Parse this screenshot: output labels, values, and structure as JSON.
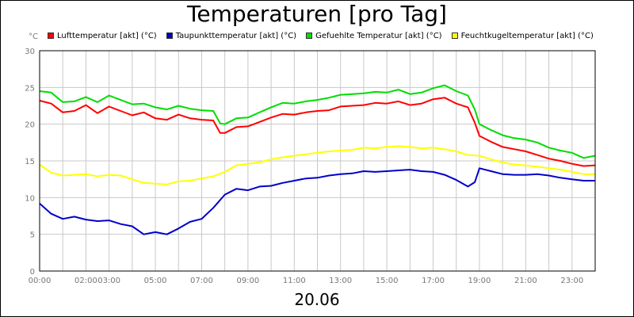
{
  "chart_data": {
    "type": "line",
    "title": "Temperaturen [pro Tag]",
    "y_unit_label": "°C",
    "xlabel": "20.06",
    "ylim": [
      0,
      30
    ],
    "y_ticks": [
      "0",
      "5",
      "10",
      "15",
      "20",
      "25",
      "30"
    ],
    "x_range_hours": [
      0,
      24
    ],
    "x_tick_labels": [
      {
        "h": 0,
        "label": "00:00"
      },
      {
        "h": 2,
        "label": "02:00"
      },
      {
        "h": 3,
        "label": "03:00"
      },
      {
        "h": 5,
        "label": "05:00"
      },
      {
        "h": 7,
        "label": "07:00"
      },
      {
        "h": 9,
        "label": "09:00"
      },
      {
        "h": 11,
        "label": "11:00"
      },
      {
        "h": 13,
        "label": "13:00"
      },
      {
        "h": 15,
        "label": "15:00"
      },
      {
        "h": 17,
        "label": "17:00"
      },
      {
        "h": 19,
        "label": "19:00"
      },
      {
        "h": 21,
        "label": "21:00"
      },
      {
        "h": 23,
        "label": "23:00"
      }
    ],
    "grid": true,
    "legend_position": "top",
    "series": [
      {
        "name": "Lufttemperatur [akt] (°C)",
        "color": "#ff0000",
        "x": [
          0,
          0.5,
          1,
          1.5,
          2,
          2.5,
          3,
          3.5,
          4,
          4.5,
          5,
          5.5,
          6,
          6.5,
          7,
          7.5,
          7.8,
          8,
          8.5,
          9,
          9.5,
          10,
          10.5,
          11,
          11.5,
          12,
          12.5,
          13,
          13.5,
          14,
          14.5,
          15,
          15.5,
          16,
          16.5,
          17,
          17.5,
          18,
          18.5,
          18.8,
          19,
          19.5,
          20,
          20.5,
          21,
          21.5,
          22,
          22.5,
          23,
          23.5,
          24
        ],
        "y": [
          23.2,
          22.8,
          21.6,
          21.8,
          22.6,
          21.5,
          22.4,
          21.8,
          21.2,
          21.6,
          20.8,
          20.6,
          21.3,
          20.8,
          20.6,
          20.5,
          18.8,
          18.8,
          19.6,
          19.7,
          20.3,
          20.9,
          21.4,
          21.3,
          21.6,
          21.8,
          21.9,
          22.4,
          22.5,
          22.6,
          22.9,
          22.8,
          23.1,
          22.6,
          22.8,
          23.4,
          23.6,
          22.8,
          22.3,
          20.2,
          18.4,
          17.6,
          16.9,
          16.6,
          16.3,
          15.8,
          15.3,
          15.0,
          14.6,
          14.3,
          14.4
        ]
      },
      {
        "name": "Taupunkttemperatur [akt] (°C)",
        "color": "#0000cc",
        "x": [
          0,
          0.5,
          1,
          1.5,
          2,
          2.5,
          3,
          3.5,
          4,
          4.5,
          5,
          5.5,
          6,
          6.5,
          7,
          7.5,
          8,
          8.5,
          9,
          9.5,
          10,
          10.5,
          11,
          11.5,
          12,
          12.5,
          13,
          13.5,
          14,
          14.5,
          15,
          15.5,
          16,
          16.5,
          17,
          17.5,
          18,
          18.5,
          18.8,
          19,
          19.5,
          20,
          20.5,
          21,
          21.5,
          22,
          22.5,
          23,
          23.5,
          24
        ],
        "y": [
          9.2,
          7.8,
          7.1,
          7.4,
          7.0,
          6.8,
          6.9,
          6.4,
          6.1,
          5.0,
          5.3,
          5.0,
          5.8,
          6.7,
          7.1,
          8.6,
          10.4,
          11.2,
          11.0,
          11.5,
          11.6,
          12.0,
          12.3,
          12.6,
          12.7,
          13.0,
          13.2,
          13.3,
          13.6,
          13.5,
          13.6,
          13.7,
          13.8,
          13.6,
          13.5,
          13.1,
          12.4,
          11.5,
          12.1,
          14.0,
          13.6,
          13.2,
          13.1,
          13.1,
          13.2,
          13.0,
          12.7,
          12.5,
          12.3,
          12.3
        ]
      },
      {
        "name": "Gefuehlte Temperatur [akt] (°C)",
        "color": "#00dd00",
        "x": [
          0,
          0.5,
          1,
          1.5,
          2,
          2.5,
          3,
          3.5,
          4,
          4.5,
          5,
          5.5,
          6,
          6.5,
          7,
          7.5,
          7.8,
          8,
          8.5,
          9,
          9.5,
          10,
          10.5,
          11,
          11.5,
          12,
          12.5,
          13,
          13.5,
          14,
          14.5,
          15,
          15.5,
          16,
          16.5,
          17,
          17.5,
          18,
          18.5,
          18.8,
          19,
          19.5,
          20,
          20.5,
          21,
          21.5,
          22,
          22.5,
          23,
          23.5,
          24
        ],
        "y": [
          24.5,
          24.3,
          23.0,
          23.1,
          23.7,
          23.0,
          23.9,
          23.3,
          22.7,
          22.8,
          22.3,
          22.0,
          22.5,
          22.1,
          21.9,
          21.8,
          20.1,
          20.0,
          20.8,
          20.9,
          21.6,
          22.3,
          22.9,
          22.8,
          23.1,
          23.3,
          23.6,
          24.0,
          24.1,
          24.2,
          24.4,
          24.3,
          24.7,
          24.1,
          24.3,
          24.9,
          25.3,
          24.5,
          23.9,
          22.0,
          20.0,
          19.2,
          18.5,
          18.1,
          17.9,
          17.5,
          16.8,
          16.4,
          16.1,
          15.4,
          15.7
        ]
      },
      {
        "name": "Feuchtkugeltemperatur [akt] (°C)",
        "color": "#ffff00",
        "x": [
          0,
          0.5,
          1,
          1.5,
          2,
          2.5,
          3,
          3.5,
          4,
          4.5,
          5,
          5.5,
          6,
          6.5,
          7,
          7.5,
          8,
          8.5,
          9,
          9.5,
          10,
          10.5,
          11,
          11.5,
          12,
          12.5,
          13,
          13.5,
          14,
          14.5,
          15,
          15.5,
          16,
          16.5,
          17,
          17.5,
          18,
          18.5,
          19,
          19.5,
          20,
          20.5,
          21,
          21.5,
          22,
          22.5,
          23,
          23.5,
          24
        ],
        "y": [
          14.5,
          13.4,
          13.0,
          13.1,
          13.2,
          12.9,
          13.1,
          13.0,
          12.5,
          12.0,
          11.9,
          11.8,
          12.2,
          12.3,
          12.6,
          12.9,
          13.5,
          14.4,
          14.6,
          14.8,
          15.2,
          15.5,
          15.7,
          15.9,
          16.1,
          16.3,
          16.4,
          16.5,
          16.8,
          16.7,
          16.9,
          17.0,
          16.9,
          16.7,
          16.8,
          16.6,
          16.3,
          15.8,
          15.7,
          15.2,
          14.8,
          14.5,
          14.4,
          14.2,
          14.0,
          13.8,
          13.5,
          13.2,
          13.2
        ]
      }
    ]
  }
}
